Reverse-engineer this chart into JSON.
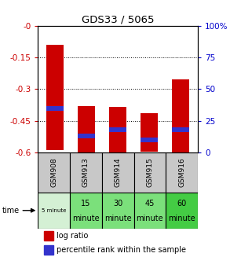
{
  "title": "GDS33 / 5065",
  "samples": [
    "GSM908",
    "GSM913",
    "GSM914",
    "GSM915",
    "GSM916"
  ],
  "time_labels": [
    "5 minute",
    "15\nminute",
    "30\nminute",
    "45\nminute",
    "60\nminute"
  ],
  "log_ratio_bottom": [
    -0.59,
    -0.62,
    -0.6,
    -0.595,
    -0.615
  ],
  "log_ratio_top": [
    -0.09,
    -0.38,
    -0.385,
    -0.415,
    -0.255
  ],
  "percentile_rank_pct": [
    35,
    13,
    18,
    10,
    18
  ],
  "ylim_left": [
    -0.6,
    0.0
  ],
  "ylim_right": [
    0,
    100
  ],
  "yticks_left": [
    0.0,
    -0.15,
    -0.3,
    -0.45,
    -0.6
  ],
  "yticks_left_labels": [
    "-0",
    "-0.15",
    "-0.3",
    "-0.45",
    "-0.6"
  ],
  "yticks_right": [
    100,
    75,
    50,
    25,
    0
  ],
  "yticks_right_labels": [
    "100%",
    "75",
    "50",
    "25",
    "0"
  ],
  "bar_color": "#cc0000",
  "blue_color": "#3333cc",
  "bg_color": "#ffffff",
  "sample_bg": "#c8c8c8",
  "left_axis_color": "#cc0000",
  "right_axis_color": "#0000cc",
  "time_colors": [
    "#d4f0d4",
    "#7be07b",
    "#7be07b",
    "#7be07b",
    "#44cc44"
  ],
  "legend_log": "log ratio",
  "legend_pct": "percentile rank within the sample"
}
